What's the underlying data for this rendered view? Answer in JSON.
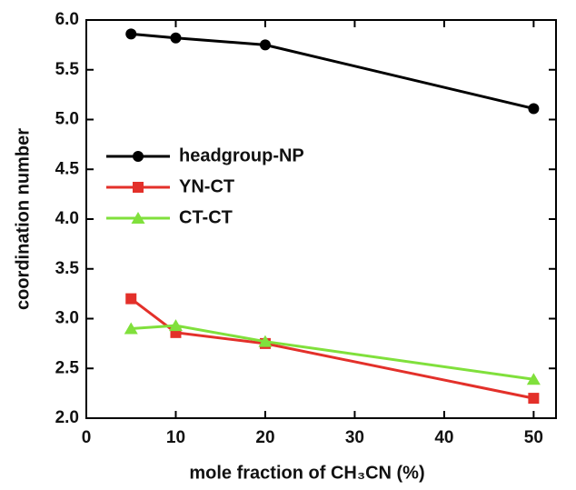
{
  "chart_data": {
    "type": "line",
    "x_label": "mole fraction of CH₃CN (%)",
    "y_label": "coordination number",
    "xlim": [
      0,
      52.5
    ],
    "xticks": [
      0,
      10,
      20,
      30,
      40,
      50
    ],
    "ylim": [
      2,
      6
    ],
    "yticks": [
      {
        "value": 2,
        "label": "2.0"
      },
      {
        "value": 2.5,
        "label": "2.5"
      },
      {
        "value": 3,
        "label": "3.0"
      },
      {
        "value": 3.5,
        "label": "3.5"
      },
      {
        "value": 4,
        "label": "4.0"
      },
      {
        "value": 4.5,
        "label": "4.5"
      },
      {
        "value": 5,
        "label": "5.0"
      },
      {
        "value": 5.5,
        "label": "5.5"
      },
      {
        "value": 6,
        "label": "6.0"
      }
    ],
    "legend": "center left",
    "series": [
      {
        "name": "headgroup-NP",
        "color": "#000000",
        "marker": "circle",
        "x": [
          5,
          10,
          20,
          50
        ],
        "values": [
          5.86,
          5.82,
          5.75,
          5.11
        ]
      },
      {
        "name": "YN-CT",
        "color": "#e3302a",
        "marker": "square",
        "x": [
          5,
          10,
          20,
          50
        ],
        "values": [
          3.2,
          2.86,
          2.75,
          2.2
        ]
      },
      {
        "name": "CT-CT",
        "color": "#80e03c",
        "marker": "triangle",
        "x": [
          5,
          10,
          20,
          50
        ],
        "values": [
          2.9,
          2.93,
          2.77,
          2.39
        ]
      }
    ]
  }
}
